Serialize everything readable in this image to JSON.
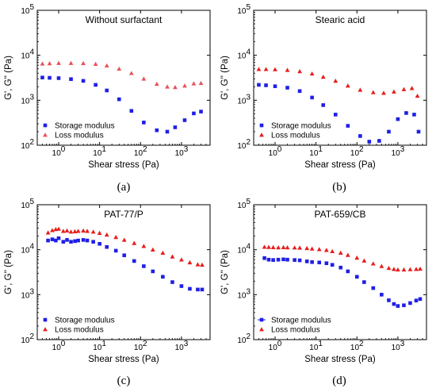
{
  "chart_data": [
    {
      "type": "scatter",
      "panel": "(a)",
      "caption_letter": "a",
      "title": "Without surfactant",
      "xlabel": "Shear stress (Pa)",
      "ylabel": "G', G'' (Pa)",
      "xscale": "log",
      "yscale": "log",
      "xlim": [
        0.3,
        5000
      ],
      "ylim": [
        100,
        100000
      ],
      "x_ticks": [
        "10^0",
        "10^1",
        "10^2",
        "10^3"
      ],
      "y_ticks": [
        "10^2",
        "10^3",
        "10^4",
        "10^5"
      ],
      "legend_position": "bottom-left",
      "series": [
        {
          "name": "Storage modulus",
          "marker": "square",
          "color": "#1f1fe6",
          "x": [
            0.4,
            0.6,
            1,
            2,
            4,
            8,
            15,
            30,
            60,
            120,
            250,
            450,
            700,
            1200,
            2000,
            3000
          ],
          "y": [
            3200,
            3150,
            3100,
            2950,
            2700,
            2200,
            1650,
            1050,
            580,
            320,
            215,
            200,
            250,
            360,
            510,
            560
          ]
        },
        {
          "name": "Loss modulus",
          "marker": "triangle",
          "color": "#e8525a",
          "x": [
            0.4,
            0.6,
            1,
            2,
            4,
            8,
            15,
            30,
            60,
            120,
            250,
            450,
            700,
            1200,
            2000,
            3000
          ],
          "y": [
            6500,
            6600,
            6700,
            6700,
            6650,
            6400,
            5900,
            5000,
            4000,
            3000,
            2300,
            2000,
            1950,
            2100,
            2350,
            2400
          ]
        }
      ]
    },
    {
      "type": "scatter",
      "panel": "(b)",
      "caption_letter": "b",
      "title": "Stearic acid",
      "xlabel": "Shear stress (Pa)",
      "ylabel": "G', G'' (Pa)",
      "xscale": "log",
      "yscale": "log",
      "xlim": [
        0.3,
        5000
      ],
      "ylim": [
        100,
        100000
      ],
      "x_ticks": [
        "10^0",
        "10^1",
        "10^2",
        "10^3"
      ],
      "y_ticks": [
        "10^2",
        "10^3",
        "10^4",
        "10^5"
      ],
      "legend_position": "bottom-left",
      "series": [
        {
          "name": "Storage modulus",
          "marker": "square",
          "color": "#1f1fe6",
          "x": [
            0.4,
            0.6,
            1,
            2,
            4,
            8,
            15,
            30,
            60,
            120,
            200,
            350,
            600,
            1000,
            1600,
            2500,
            3200
          ],
          "y": [
            2200,
            2150,
            2050,
            1900,
            1600,
            1150,
            780,
            480,
            270,
            160,
            120,
            125,
            200,
            380,
            520,
            480,
            200
          ]
        },
        {
          "name": "Loss modulus",
          "marker": "triangle",
          "color": "#e81c1c",
          "x": [
            0.4,
            0.6,
            1,
            2,
            4,
            8,
            15,
            30,
            60,
            120,
            250,
            450,
            800,
            1400,
            2200,
            3000
          ],
          "y": [
            4900,
            4900,
            4850,
            4700,
            4400,
            3900,
            3300,
            2700,
            2100,
            1700,
            1500,
            1450,
            1550,
            1750,
            1850,
            1250
          ]
        }
      ]
    },
    {
      "type": "scatter",
      "panel": "(c)",
      "caption_letter": "c",
      "title": "PAT-77/P",
      "xlabel": "Shear stress (Pa)",
      "ylabel": "G', G'' (Pa)",
      "xscale": "log",
      "yscale": "log",
      "xlim": [
        0.3,
        5000
      ],
      "ylim": [
        100,
        100000
      ],
      "x_ticks": [
        "10^0",
        "10^1",
        "10^2",
        "10^3"
      ],
      "y_ticks": [
        "10^2",
        "10^3",
        "10^4",
        "10^5"
      ],
      "legend_position": "bottom-left",
      "series": [
        {
          "name": "Storage modulus",
          "marker": "square",
          "color": "#1f1fe6",
          "x": [
            0.55,
            0.7,
            0.85,
            1,
            1.3,
            1.6,
            2,
            2.5,
            3,
            4,
            5,
            7,
            10,
            15,
            25,
            40,
            70,
            120,
            200,
            350,
            600,
            1000,
            1600,
            2500,
            3200
          ],
          "y": [
            16000,
            17000,
            16000,
            18000,
            15000,
            16500,
            15000,
            15500,
            16000,
            16500,
            16000,
            15000,
            13500,
            11500,
            9500,
            7500,
            5600,
            4300,
            3300,
            2500,
            1900,
            1550,
            1350,
            1300,
            1300
          ]
        },
        {
          "name": "Loss modulus",
          "marker": "triangle",
          "color": "#e81c1c",
          "x": [
            0.55,
            0.7,
            0.85,
            1,
            1.3,
            1.6,
            2,
            2.5,
            3,
            4,
            5,
            7,
            10,
            15,
            25,
            40,
            70,
            120,
            200,
            350,
            600,
            1000,
            1600,
            2500,
            3200
          ],
          "y": [
            24000,
            27000,
            28500,
            29000,
            26000,
            26500,
            25000,
            25500,
            26000,
            26500,
            26000,
            25000,
            23500,
            21500,
            19000,
            16500,
            14000,
            12000,
            10000,
            8500,
            7000,
            6000,
            5200,
            4700,
            4600
          ]
        }
      ]
    },
    {
      "type": "scatter",
      "panel": "(d)",
      "caption_letter": "d",
      "title": "PAT-659/CB",
      "xlabel": "Shear stress (Pa)",
      "ylabel": "G', G'' (Pa)",
      "xscale": "log",
      "yscale": "log",
      "xlim": [
        0.3,
        5000
      ],
      "ylim": [
        100,
        100000
      ],
      "x_ticks": [
        "10^0",
        "10^1",
        "10^2",
        "10^3"
      ],
      "y_ticks": [
        "10^2",
        "10^3",
        "10^4",
        "10^5"
      ],
      "legend_position": "bottom-left",
      "series": [
        {
          "name": "Storage modulus",
          "marker": "square",
          "color": "#1f1fe6",
          "x": [
            0.55,
            0.7,
            0.9,
            1.2,
            1.6,
            2,
            3,
            4,
            6,
            8,
            12,
            18,
            25,
            40,
            60,
            100,
            150,
            250,
            400,
            600,
            800,
            1000,
            1400,
            2000,
            2800,
            3500
          ],
          "y": [
            6500,
            6000,
            5900,
            6000,
            6100,
            6000,
            5900,
            5800,
            5500,
            5300,
            5200,
            5000,
            4600,
            4000,
            3300,
            2500,
            1900,
            1400,
            1000,
            750,
            620,
            560,
            580,
            650,
            740,
            800
          ]
        },
        {
          "name": "Loss modulus",
          "marker": "triangle",
          "color": "#e81c1c",
          "x": [
            0.55,
            0.7,
            0.9,
            1.2,
            1.6,
            2,
            3,
            4,
            6,
            8,
            12,
            18,
            25,
            40,
            60,
            100,
            150,
            250,
            400,
            600,
            800,
            1000,
            1400,
            2000,
            2800,
            3500
          ],
          "y": [
            11500,
            11400,
            11300,
            11200,
            11300,
            11200,
            11100,
            11000,
            10800,
            10500,
            10200,
            9800,
            9200,
            8500,
            7600,
            6600,
            5700,
            4900,
            4300,
            3900,
            3700,
            3600,
            3600,
            3650,
            3700,
            3750
          ]
        }
      ]
    }
  ]
}
